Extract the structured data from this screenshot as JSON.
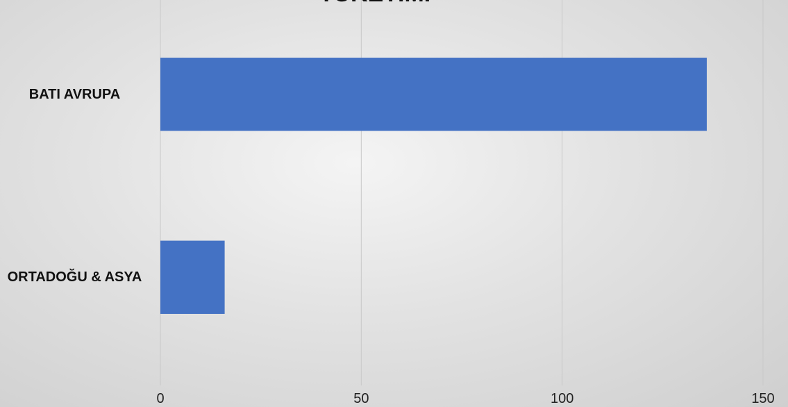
{
  "chart_data": {
    "type": "bar",
    "orientation": "horizontal",
    "title": "TÜKETİMİ",
    "categories": [
      "BATI AVRUPA",
      "ORTADOĞU & ASYA"
    ],
    "values": [
      136,
      16
    ],
    "color": "#4472c4",
    "xlim": [
      0,
      150
    ],
    "xticks": [
      0,
      50,
      100,
      150
    ],
    "grid": true
  }
}
